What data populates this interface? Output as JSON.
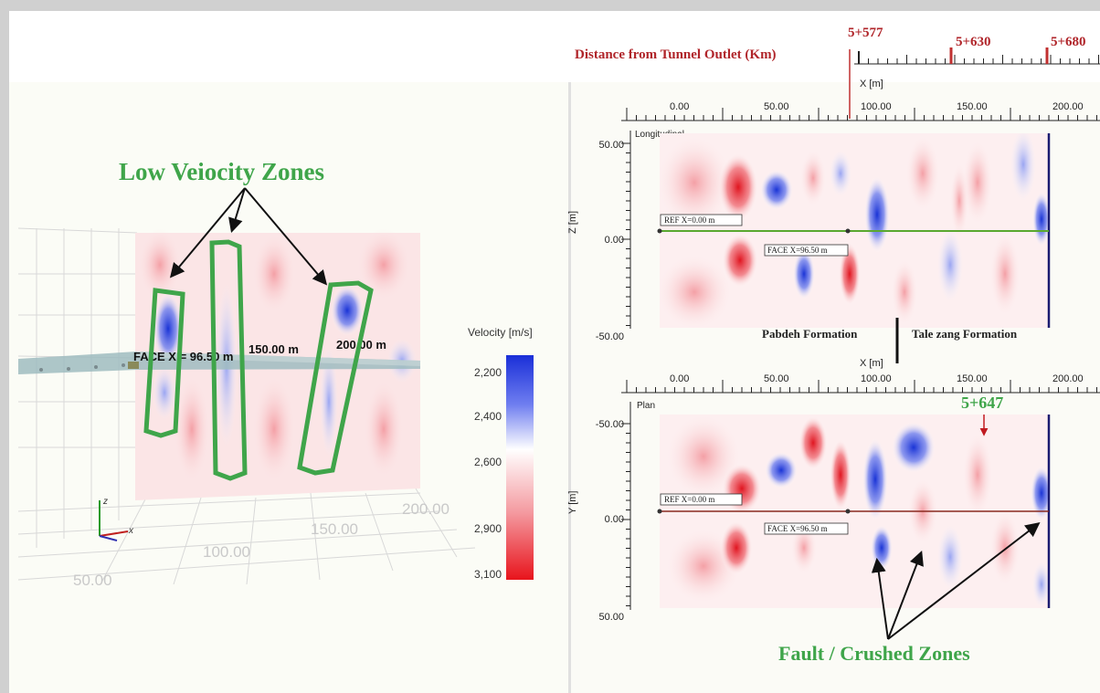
{
  "left": {
    "annotation": "Low Veiocity Zones",
    "face_label": "FACE X = 96.50 m",
    "label_150": "150.00 m",
    "label_200": "200.00 m",
    "axis_labels": [
      "200.00",
      "150.00",
      "100.00",
      "50.00"
    ],
    "axis_z": "z",
    "axis_x": "x"
  },
  "legend": {
    "title": "Velocity [m/s]",
    "ticks": [
      "2,200",
      "2,400",
      "2,600",
      "2,900",
      "3,100"
    ],
    "colors": {
      "low": "#1a2fd8",
      "mid": "#ffffff",
      "high": "#e8141c"
    }
  },
  "distance": {
    "title": "Distance from Tunnel Outlet (Km)",
    "marks": [
      "5+577",
      "5+630",
      "5+680"
    ]
  },
  "longitudinal": {
    "axis_title": "X [m]",
    "x_ticks": [
      "0.00",
      "50.00",
      "100.00",
      "150.00",
      "200.00"
    ],
    "panel_label": "Longitudinal",
    "y_title": "Z [m]",
    "y_ticks": [
      "50.00",
      "0.00",
      "-50.00"
    ],
    "ref_label": "REF X=0.00 m",
    "face_label": "FACE X=96.50 m",
    "formation_left": "Pabdeh Formation",
    "formation_right": "Tale zang Formation"
  },
  "plan": {
    "axis_title": "X [m]",
    "x_ticks": [
      "0.00",
      "50.00",
      "100.00",
      "150.00",
      "200.00"
    ],
    "panel_label": "Plan",
    "y_title": "Y [m]",
    "y_ticks": [
      "-50.00",
      "0.00",
      "50.00"
    ],
    "ref_label": "REF X=0.00 m",
    "face_label": "FACE X=96.50 m",
    "chainage": "5+647"
  },
  "fault_label": "Fault / Crushed Zones"
}
